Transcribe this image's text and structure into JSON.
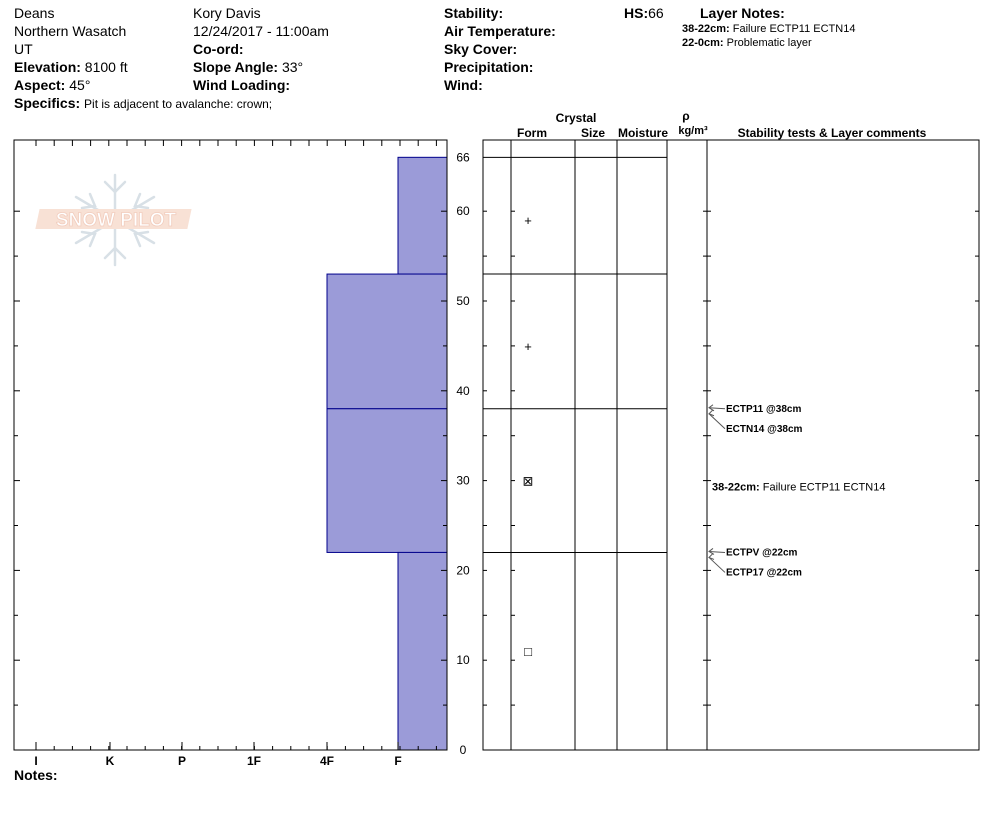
{
  "header": {
    "location": "Deans",
    "range": "Northern Wasatch",
    "state": "UT",
    "elevation_label": "Elevation:",
    "elevation_value": "8100 ft",
    "aspect_label": "Aspect:",
    "aspect_value": "45°",
    "specifics_label": "Specifics:",
    "specifics_value": "Pit is adjacent to avalanche: crown;",
    "observer": "Kory Davis",
    "datetime": "12/24/2017 - 11:00am",
    "coord_label": "Co-ord:",
    "slope_label": "Slope Angle:",
    "slope_value": "33°",
    "wind_loading_label": "Wind Loading:",
    "stability_label": "Stability:",
    "air_temp_label": "Air Temperature:",
    "sky_cover_label": "Sky Cover:",
    "precip_label": "Precipitation:",
    "wind_label": "Wind:",
    "hs_label": "HS:",
    "hs_value": "66",
    "layer_notes_label": "Layer Notes:",
    "layer_notes": [
      {
        "range": "38-22cm:",
        "text": "Failure ECTP11 ECTN14"
      },
      {
        "range": "22-0cm:",
        "text": "Problematic layer"
      }
    ]
  },
  "logo": {
    "text": "SNOW PILOT"
  },
  "notes_label": "Notes:",
  "column_headers": {
    "crystal": "Crystal",
    "form": "Form",
    "size": "Size",
    "moisture": "Moisture",
    "rho": "ρ",
    "density_unit": "kg/m³",
    "stability": "Stability tests & Layer comments"
  },
  "chart_data": {
    "type": "bar",
    "title": "",
    "xlabel": "",
    "ylabel": "",
    "hardness_categories": [
      "I",
      "K",
      "P",
      "1F",
      "4F",
      "F"
    ],
    "hardness_index": {
      "F": 0,
      "4F": 1,
      "1F": 2,
      "P": 3,
      "K": 4,
      "I": 5
    },
    "ylim": [
      0,
      66
    ],
    "y_tick_labels": [
      0,
      10,
      20,
      30,
      40,
      50,
      60,
      66
    ],
    "y_minor_step": 5,
    "colors": {
      "fill": "#9b9bd8",
      "stroke": "#00008b"
    },
    "layers": [
      {
        "top": 66,
        "bottom": 53,
        "hardness": "F",
        "form": "+",
        "form_y": 59
      },
      {
        "top": 53,
        "bottom": 38,
        "hardness": "4F",
        "form": "+",
        "form_y": 45
      },
      {
        "top": 38,
        "bottom": 22,
        "hardness": "4F",
        "form": "⊠",
        "form_y": 30
      },
      {
        "top": 22,
        "bottom": 0,
        "hardness": "F",
        "form": "□",
        "form_y": 11
      }
    ],
    "tests": [
      {
        "label": "ECTP11 @38cm",
        "depth": 38
      },
      {
        "label": "ECTN14 @38cm",
        "depth": 38
      },
      {
        "label": "ECTPV @22cm",
        "depth": 22
      },
      {
        "label": "ECTP17 @22cm",
        "depth": 22
      }
    ],
    "comments": [
      {
        "range": "38-22cm:",
        "text": "Failure ECTP11 ECTN14",
        "y": 30
      }
    ]
  }
}
